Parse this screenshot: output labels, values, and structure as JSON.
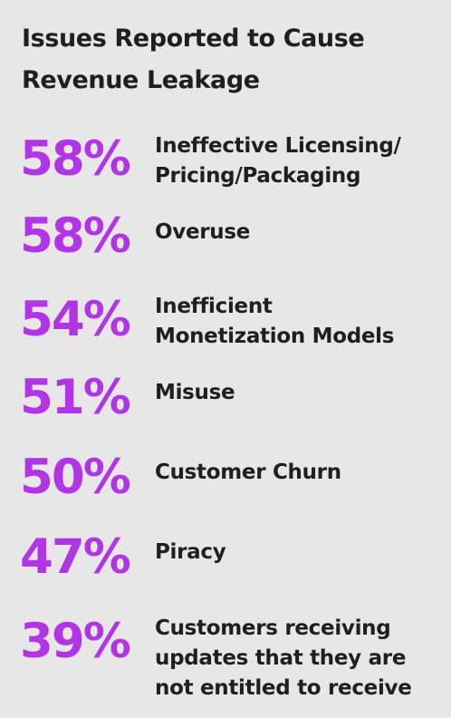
{
  "chart_data": {
    "type": "table",
    "title": "Issues Reported to Cause Revenue Leakage",
    "items": [
      {
        "value": "58%",
        "label": "Ineffective Licensing/\nPricing/Packaging"
      },
      {
        "value": "58%",
        "label": "Overuse"
      },
      {
        "value": "54%",
        "label": "Inefficient\nMonetization Models"
      },
      {
        "value": "51%",
        "label": "Misuse"
      },
      {
        "value": "50%",
        "label": "Customer Churn"
      },
      {
        "value": "47%",
        "label": "Piracy"
      },
      {
        "value": "39%",
        "label": "Customers receiving\nupdates that they are\nnot entitled to receive"
      }
    ]
  },
  "colors": {
    "background": "#e8e7e7",
    "percent": "#b135e6",
    "text": "#1f1f1f"
  }
}
